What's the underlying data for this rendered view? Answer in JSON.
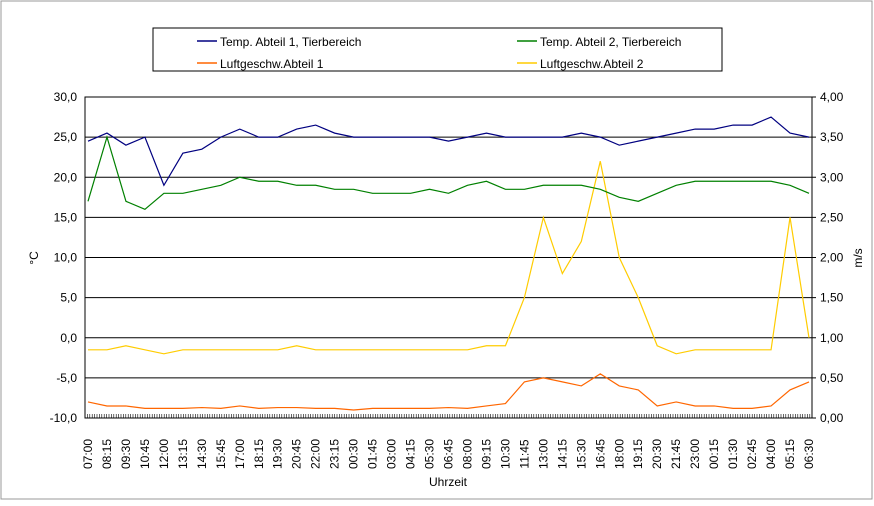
{
  "chart_data": {
    "type": "line",
    "xlabel": "Uhrzeit",
    "ylabel": "°C",
    "y2label": "m/s",
    "categories": [
      "07:00",
      "08:15",
      "09:30",
      "10:45",
      "12:00",
      "13:15",
      "14:30",
      "15:45",
      "17:00",
      "18:15",
      "19:30",
      "20:45",
      "22:00",
      "23:15",
      "00:30",
      "01:45",
      "03:00",
      "04:15",
      "05:30",
      "06:45",
      "08:00",
      "09:15",
      "10:30",
      "11:45",
      "13:00",
      "14:15",
      "15:30",
      "16:45",
      "18:00",
      "19:15",
      "20:30",
      "21:45",
      "23:00",
      "00:15",
      "01:30",
      "02:45",
      "04:00",
      "05:15",
      "06:30"
    ],
    "series": [
      {
        "name": "Temp. Abteil 1, Tierbereich",
        "color": "#000080",
        "values": [
          24.5,
          25.5,
          24,
          25,
          19,
          23,
          23.5,
          25,
          26,
          25,
          25,
          26,
          26.5,
          25.5,
          25,
          25,
          25,
          25,
          25,
          24.5,
          25,
          25.5,
          25,
          25,
          25,
          25,
          25.5,
          25,
          24,
          24.5,
          25,
          25.5,
          26,
          26,
          26.5,
          26.5,
          27.5,
          25.5,
          25
        ]
      },
      {
        "name": "Temp. Abteil 2, Tierbereich",
        "color": "#008000",
        "values": [
          17,
          25,
          17,
          16,
          18,
          18,
          18.5,
          19,
          20,
          19.5,
          19.5,
          19,
          19,
          18.5,
          18.5,
          18,
          18,
          18,
          18.5,
          18,
          19,
          19.5,
          18.5,
          18.5,
          19,
          19,
          19,
          18.5,
          17.5,
          17,
          18,
          19,
          19.5,
          19.5,
          19.5,
          19.5,
          19.5,
          19,
          18
        ]
      },
      {
        "name": "Luftgeschw.Abteil 1",
        "color": "#ff6600",
        "axis": "y2",
        "values": [
          0.2,
          0.15,
          0.15,
          0.12,
          0.12,
          0.12,
          0.13,
          0.12,
          0.15,
          0.12,
          0.13,
          0.13,
          0.12,
          0.12,
          0.1,
          0.12,
          0.12,
          0.12,
          0.12,
          0.13,
          0.12,
          0.15,
          0.18,
          0.45,
          0.5,
          0.45,
          0.4,
          0.55,
          0.4,
          0.35,
          0.15,
          0.2,
          0.15,
          0.15,
          0.12,
          0.12,
          0.15,
          0.35,
          0.45
        ]
      },
      {
        "name": "Luftgeschw.Abteil 2",
        "color": "#ffcc00",
        "axis": "y2",
        "values": [
          0.85,
          0.85,
          0.9,
          0.85,
          0.8,
          0.85,
          0.85,
          0.85,
          0.85,
          0.85,
          0.85,
          0.9,
          0.85,
          0.85,
          0.85,
          0.85,
          0.85,
          0.85,
          0.85,
          0.85,
          0.85,
          0.9,
          0.9,
          1.5,
          2.5,
          1.8,
          2.2,
          3.2,
          2.0,
          1.5,
          0.9,
          0.8,
          0.85,
          0.85,
          0.85,
          0.85,
          0.85,
          2.5,
          1.0
        ]
      }
    ],
    "ylim": [
      -10,
      30
    ],
    "yticks": [
      {
        "value": -10,
        "label": "-10,0"
      },
      {
        "value": -5,
        "label": "-5,0"
      },
      {
        "value": 0,
        "label": "0,0"
      },
      {
        "value": 5,
        "label": "5,0"
      },
      {
        "value": 10,
        "label": "10,0"
      },
      {
        "value": 15,
        "label": "15,0"
      },
      {
        "value": 20,
        "label": "20,0"
      },
      {
        "value": 25,
        "label": "25,0"
      },
      {
        "value": 30,
        "label": "30,0"
      }
    ],
    "y2lim": [
      0,
      4
    ],
    "y2ticks": [
      {
        "value": 0,
        "label": "0,00"
      },
      {
        "value": 0.5,
        "label": "0,50"
      },
      {
        "value": 1,
        "label": "1,00"
      },
      {
        "value": 1.5,
        "label": "1,50"
      },
      {
        "value": 2,
        "label": "2,00"
      },
      {
        "value": 2.5,
        "label": "2,50"
      },
      {
        "value": 3,
        "label": "3,00"
      },
      {
        "value": 3.5,
        "label": "3,50"
      },
      {
        "value": 4,
        "label": "4,00"
      }
    ],
    "grid": true
  }
}
